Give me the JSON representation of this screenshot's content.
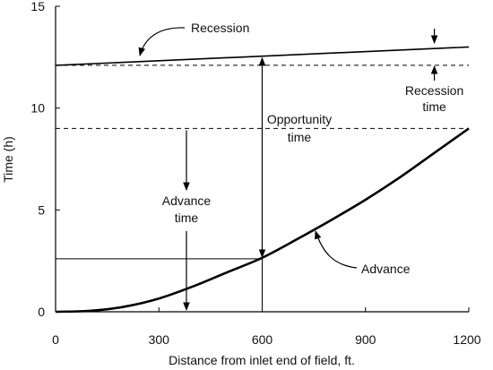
{
  "chart_data": {
    "type": "line",
    "xlabel": "Distance from inlet end of field, ft.",
    "ylabel": "Time (h)",
    "xlim": [
      0,
      1200
    ],
    "ylim": [
      0,
      15
    ],
    "x_ticks": [
      "0",
      "300",
      "600",
      "900",
      "1200"
    ],
    "y_ticks": [
      "0",
      "5",
      "10",
      "15"
    ],
    "series": [
      {
        "name": "Recession",
        "x": [
          0,
          1200
        ],
        "y": [
          12.1,
          13.0
        ]
      },
      {
        "name": "Advance",
        "x": [
          0,
          100,
          200,
          300,
          400,
          500,
          600,
          700,
          800,
          900,
          1000,
          1100,
          1200
        ],
        "y": [
          0.0,
          0.05,
          0.25,
          0.65,
          1.25,
          1.95,
          2.65,
          3.55,
          4.5,
          5.5,
          6.6,
          7.8,
          9.0
        ]
      }
    ],
    "annotations": {
      "recession": "Recession",
      "advance": "Advance",
      "opportunity_time": [
        "Opportunity",
        "time"
      ],
      "advance_time": [
        "Advance",
        "time"
      ],
      "recession_time": [
        "Recession",
        "time"
      ]
    },
    "reference_lines": {
      "horizontal_dashed": [
        12.1,
        9.0
      ],
      "horizontal_solid": [
        2.6
      ],
      "vertical_solid_x": 600
    }
  }
}
